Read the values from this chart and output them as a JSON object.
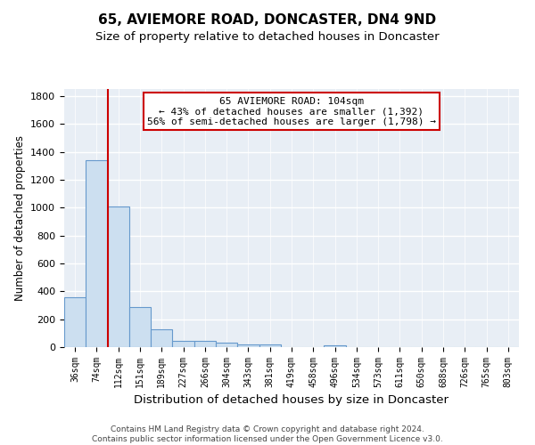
{
  "title1": "65, AVIEMORE ROAD, DONCASTER, DN4 9ND",
  "title2": "Size of property relative to detached houses in Doncaster",
  "xlabel": "Distribution of detached houses by size in Doncaster",
  "ylabel": "Number of detached properties",
  "categories": [
    "36sqm",
    "74sqm",
    "112sqm",
    "151sqm",
    "189sqm",
    "227sqm",
    "266sqm",
    "304sqm",
    "343sqm",
    "381sqm",
    "419sqm",
    "458sqm",
    "496sqm",
    "534sqm",
    "573sqm",
    "611sqm",
    "650sqm",
    "688sqm",
    "726sqm",
    "765sqm",
    "803sqm"
  ],
  "values": [
    355,
    1340,
    1010,
    285,
    130,
    42,
    42,
    30,
    20,
    18,
    0,
    0,
    15,
    0,
    0,
    0,
    0,
    0,
    0,
    0,
    0
  ],
  "bar_color": "#ccdff0",
  "bar_edge_color": "#6699cc",
  "red_line_index": 2,
  "annotation_text": "65 AVIEMORE ROAD: 104sqm\n← 43% of detached houses are smaller (1,392)\n56% of semi-detached houses are larger (1,798) →",
  "annotation_box_color": "#ffffff",
  "annotation_box_edge_color": "#cc0000",
  "ylim": [
    0,
    1850
  ],
  "yticks": [
    0,
    200,
    400,
    600,
    800,
    1000,
    1200,
    1400,
    1600,
    1800
  ],
  "background_color": "#e8eef5",
  "grid_color": "#ffffff",
  "footer": "Contains HM Land Registry data © Crown copyright and database right 2024.\nContains public sector information licensed under the Open Government Licence v3.0.",
  "title1_fontsize": 11,
  "title2_fontsize": 9.5,
  "xlabel_fontsize": 9.5,
  "ylabel_fontsize": 8.5,
  "tick_fontsize": 7,
  "annotation_fontsize": 8,
  "footer_fontsize": 6.5
}
